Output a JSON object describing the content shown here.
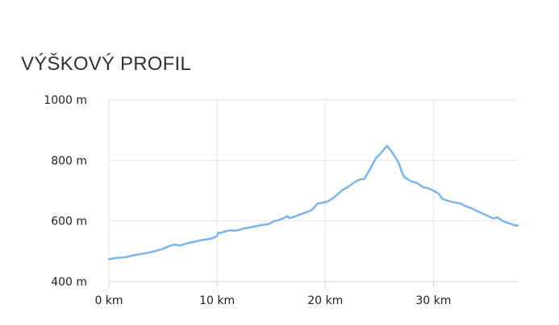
{
  "title": "VÝŠKOVÝ PROFIL",
  "chart_data": {
    "type": "line",
    "title": "VÝŠKOVÝ PROFIL",
    "xlabel": "",
    "ylabel": "",
    "xlim": [
      0,
      37.8
    ],
    "ylim": [
      400,
      1000
    ],
    "x_ticks": [
      0,
      10,
      20,
      30
    ],
    "x_tick_labels": [
      "0 km",
      "10 km",
      "20 km",
      "30 km"
    ],
    "y_ticks": [
      400,
      600,
      800,
      1000
    ],
    "y_tick_labels": [
      "400 m",
      "600 m",
      "800 m",
      "1000 m"
    ],
    "grid": true,
    "line_color": "#7cb5ec",
    "series": [
      {
        "x": [
          0,
          0.7,
          1.5,
          2.2,
          3,
          4,
          5,
          5.6,
          6,
          6.6,
          7,
          7.6,
          8.1,
          8.6,
          9,
          9.5,
          10,
          10.1,
          10.3,
          10.8,
          11.2,
          11.6,
          12,
          12.3,
          12.6,
          13,
          13.6,
          14.2,
          14.8,
          15.2,
          15.6,
          16.1,
          16.5,
          16.7,
          17.1,
          17.7,
          18.2,
          18.7,
          19,
          19.3,
          19.7,
          20.2,
          20.7,
          21.2,
          21.6,
          22,
          22.4,
          22.8,
          23.3,
          23.6,
          24.2,
          24.4,
          24.7,
          25.1,
          25.4,
          25.7,
          26,
          26.4,
          26.8,
          27.1,
          27.3,
          27.6,
          28,
          28.5,
          29,
          29.5,
          30,
          30.5,
          30.8,
          31.2,
          31.8,
          32.5,
          32.9,
          33.5,
          34.2,
          34.8,
          35.3,
          35.6,
          35.9,
          36.4,
          36.8,
          37.2,
          37.5,
          37.8
        ],
        "y": [
          474,
          478,
          480,
          486,
          491,
          498,
          508,
          517,
          522,
          519,
          524,
          529,
          533,
          537,
          539,
          542,
          550,
          562,
          560,
          566,
          569,
          568,
          570,
          574,
          576,
          578,
          583,
          587,
          590,
          598,
          602,
          608,
          616,
          609,
          614,
          622,
          628,
          635,
          645,
          658,
          660,
          664,
          675,
          690,
          702,
          710,
          720,
          730,
          738,
          738,
          775,
          790,
          808,
          822,
          835,
          848,
          835,
          815,
          790,
          760,
          745,
          738,
          730,
          725,
          712,
          708,
          700,
          690,
          674,
          668,
          662,
          658,
          650,
          642,
          630,
          620,
          612,
          608,
          612,
          600,
          594,
          590,
          585,
          585
        ]
      }
    ]
  }
}
